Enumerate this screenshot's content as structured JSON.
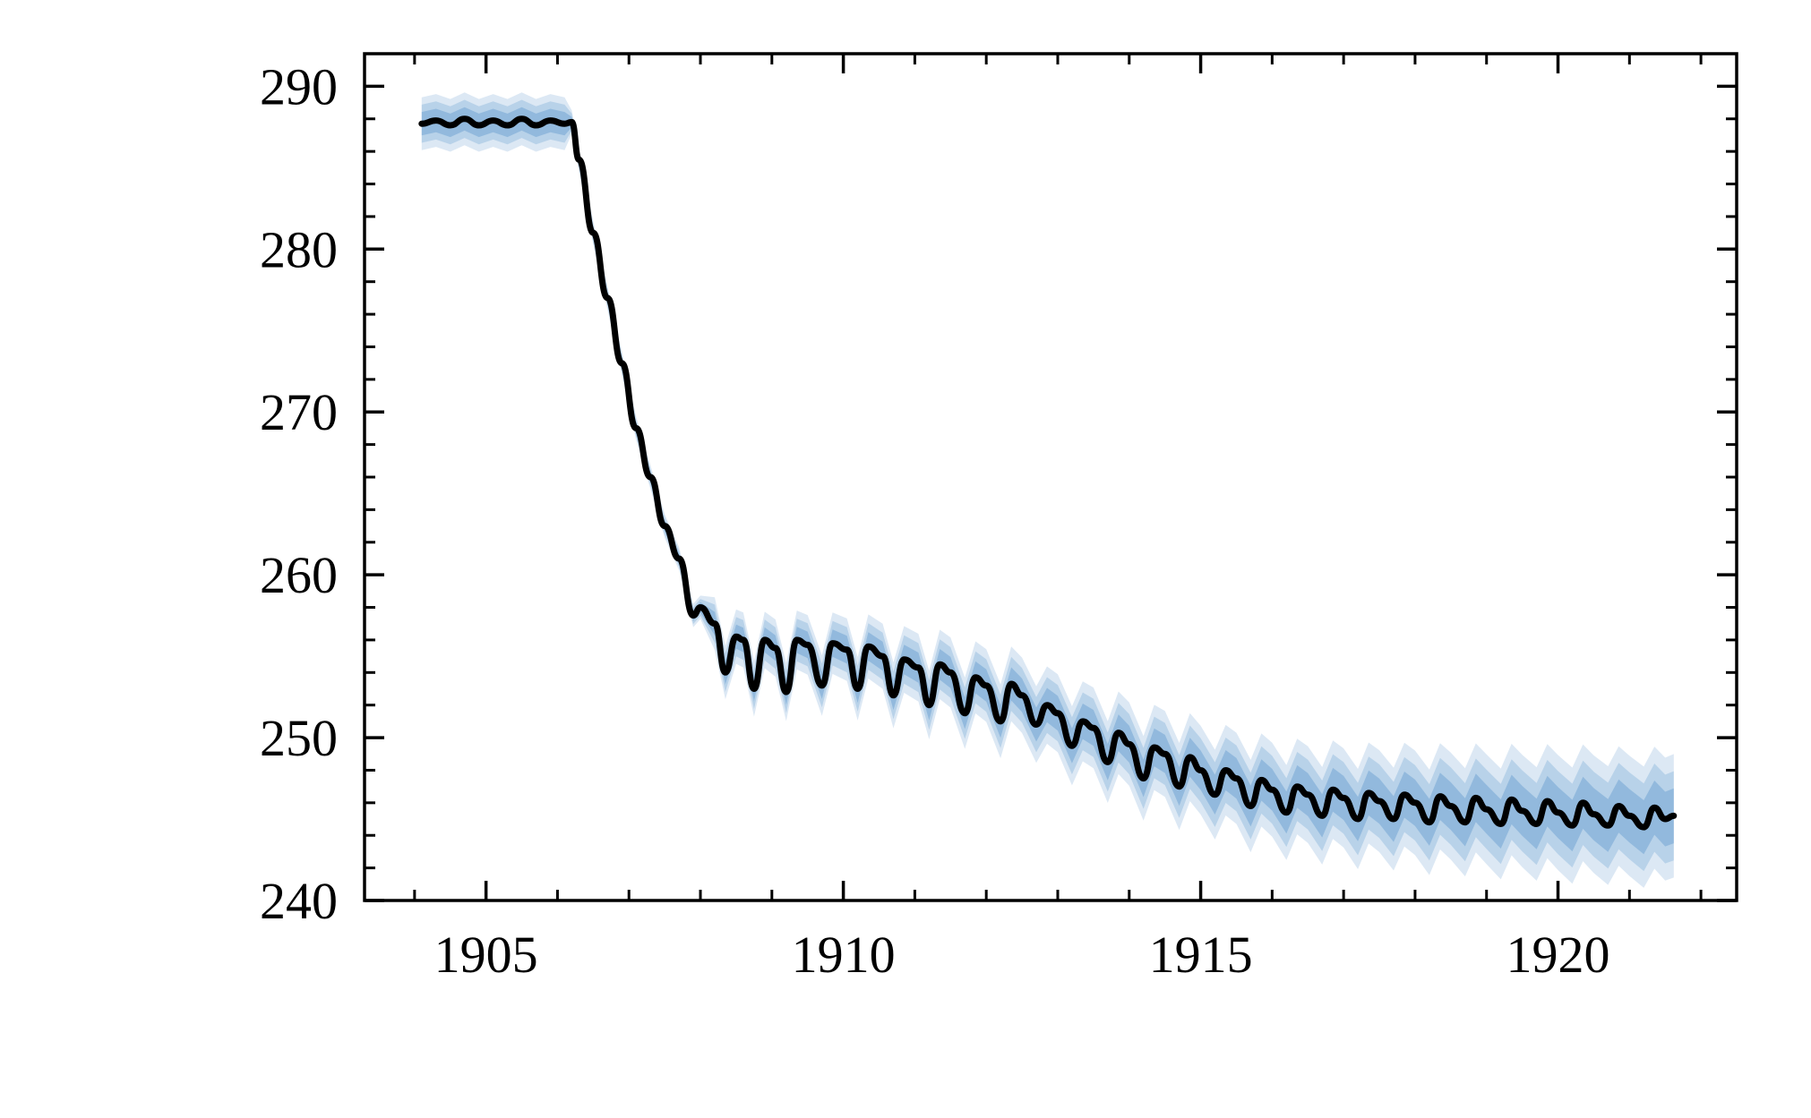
{
  "chart_data": {
    "type": "line",
    "title": "",
    "xlabel": "",
    "ylabel": "",
    "xlim": [
      1903.3,
      1922.5
    ],
    "ylim": [
      240,
      292
    ],
    "x_ticks": [
      1905,
      1910,
      1915,
      1920
    ],
    "x_tick_labels": [
      "1905",
      "1910",
      "1915",
      "1920"
    ],
    "y_ticks": [
      240,
      250,
      260,
      270,
      280,
      290
    ],
    "y_tick_labels": [
      "240",
      "250",
      "260",
      "270",
      "280",
      "290"
    ],
    "grid": false,
    "colors": {
      "line": "#000000",
      "band": "#3d82c4"
    },
    "series": [
      {
        "x": [
          1904.1,
          1904.3,
          1904.5,
          1904.7,
          1904.9,
          1905.1,
          1905.3,
          1905.5,
          1905.7,
          1905.9,
          1906.1,
          1906.2,
          1906.3,
          1906.5,
          1906.7,
          1906.9,
          1907.1,
          1907.3,
          1907.5,
          1907.7,
          1907.9,
          1908.0,
          1908.2,
          1908.35,
          1908.5,
          1908.6,
          1908.75,
          1908.9,
          1909.05,
          1909.2,
          1909.35,
          1909.5,
          1909.7,
          1909.85,
          1910.05,
          1910.2,
          1910.35,
          1910.55,
          1910.7,
          1910.85,
          1911.05,
          1911.2,
          1911.35,
          1911.5,
          1911.7,
          1911.85,
          1912.0,
          1912.2,
          1912.35,
          1912.5,
          1912.7,
          1912.85,
          1913.0,
          1913.2,
          1913.35,
          1913.5,
          1913.7,
          1913.85,
          1914.0,
          1914.2,
          1914.35,
          1914.5,
          1914.7,
          1914.85,
          1915.0,
          1915.2,
          1915.35,
          1915.5,
          1915.7,
          1915.85,
          1916.0,
          1916.2,
          1916.35,
          1916.5,
          1916.7,
          1916.85,
          1917.0,
          1917.2,
          1917.35,
          1917.5,
          1917.7,
          1917.85,
          1918.0,
          1918.2,
          1918.35,
          1918.5,
          1918.7,
          1918.85,
          1919.0,
          1919.2,
          1919.35,
          1919.5,
          1919.7,
          1919.85,
          1920.0,
          1920.2,
          1920.35,
          1920.5,
          1920.7,
          1920.85,
          1921.0,
          1921.2,
          1921.35,
          1921.5,
          1921.62
        ],
        "y": [
          287.7,
          287.9,
          287.6,
          288.0,
          287.6,
          287.9,
          287.6,
          288.0,
          287.6,
          287.9,
          287.7,
          287.8,
          285.5,
          281.0,
          277.0,
          273.0,
          269.0,
          266.0,
          263.0,
          261.0,
          257.5,
          258.0,
          257.0,
          254.0,
          256.2,
          256.0,
          253.0,
          256.0,
          255.5,
          252.8,
          256.0,
          255.7,
          253.2,
          255.8,
          255.4,
          253.0,
          255.6,
          255.0,
          252.6,
          254.8,
          254.3,
          252.0,
          254.5,
          254.0,
          251.5,
          253.7,
          253.2,
          251.0,
          253.3,
          252.6,
          250.8,
          252.0,
          251.5,
          249.5,
          251.0,
          250.6,
          248.5,
          250.3,
          249.6,
          247.5,
          249.4,
          249.0,
          247.0,
          248.8,
          248.0,
          246.5,
          248.0,
          247.5,
          245.8,
          247.4,
          246.8,
          245.4,
          247.0,
          246.5,
          245.2,
          246.8,
          246.3,
          245.0,
          246.6,
          246.1,
          245.0,
          246.5,
          246.0,
          244.8,
          246.4,
          245.8,
          244.8,
          246.3,
          245.6,
          244.7,
          246.2,
          245.5,
          244.7,
          246.1,
          245.4,
          244.6,
          246.0,
          245.3,
          244.6,
          245.8,
          245.2,
          244.5,
          245.7,
          245.0,
          245.2
        ]
      }
    ]
  }
}
